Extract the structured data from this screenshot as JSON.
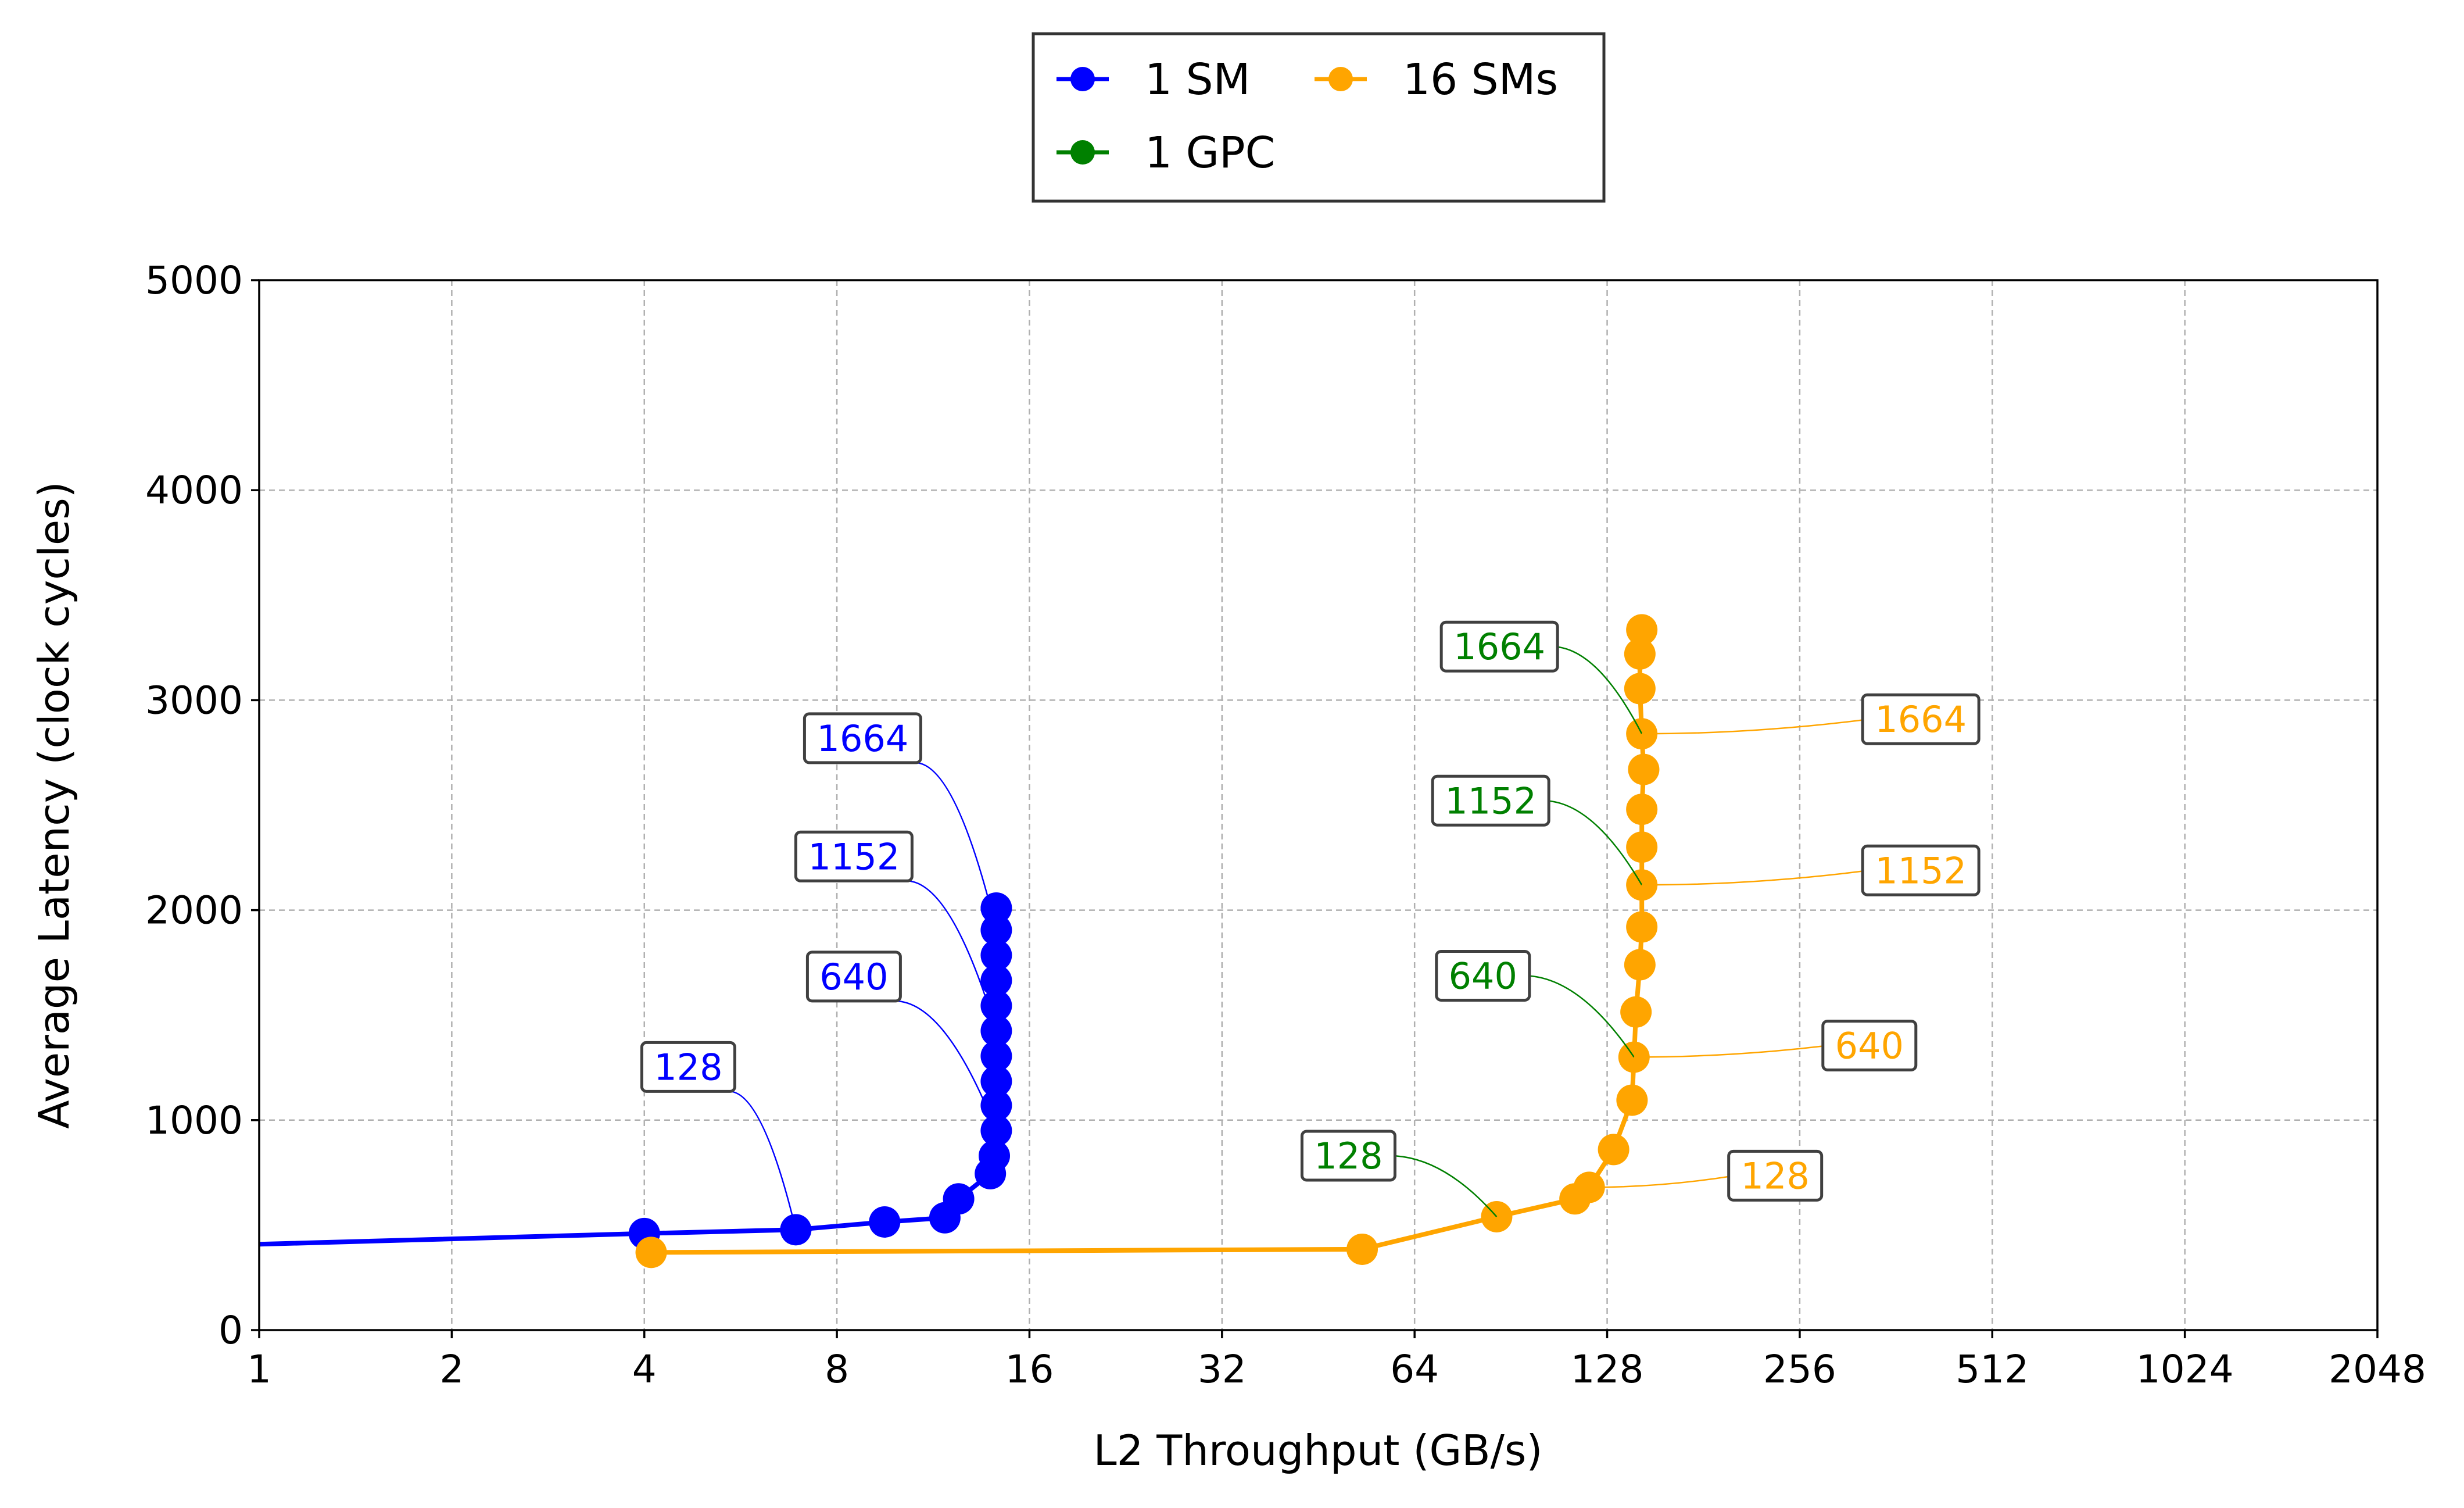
{
  "chart_data": {
    "type": "line",
    "xlabel": "L2 Throughput (GB/s)",
    "ylabel": "Average Latency (clock cycles)",
    "xscale": "log2",
    "xlim": [
      1,
      2048
    ],
    "ylim": [
      0,
      5000
    ],
    "xticks": [
      1,
      2,
      4,
      8,
      16,
      32,
      64,
      128,
      256,
      512,
      1024,
      2048
    ],
    "yticks": [
      0,
      1000,
      2000,
      3000,
      4000,
      5000
    ],
    "grid": true,
    "legend": {
      "position": "top-center",
      "columns": 2
    },
    "series": [
      {
        "name": "1 SM",
        "color": "#0000ff",
        "points": [
          [
            0.9,
            405
          ],
          [
            4.0,
            460
          ],
          [
            6.9,
            478
          ],
          [
            9.5,
            515
          ],
          [
            11.8,
            535
          ],
          [
            12.4,
            625
          ],
          [
            13.9,
            745
          ],
          [
            14.1,
            830
          ],
          [
            14.2,
            950
          ],
          [
            14.2,
            1070
          ],
          [
            14.2,
            1185
          ],
          [
            14.2,
            1305
          ],
          [
            14.2,
            1425
          ],
          [
            14.2,
            1545
          ],
          [
            14.2,
            1665
          ],
          [
            14.2,
            1785
          ],
          [
            14.2,
            1905
          ],
          [
            14.2,
            2010
          ]
        ]
      },
      {
        "name": "1 GPC",
        "color": "#008000",
        "points": []
      },
      {
        "name": "16 SMs",
        "color": "#ffa500",
        "points": [
          [
            4.1,
            370
          ],
          [
            53,
            385
          ],
          [
            86,
            540
          ],
          [
            114,
            625
          ],
          [
            120,
            680
          ],
          [
            131,
            860
          ],
          [
            140,
            1095
          ],
          [
            141,
            1300
          ],
          [
            142,
            1515
          ],
          [
            144,
            1740
          ],
          [
            145,
            1920
          ],
          [
            145,
            2120
          ],
          [
            145,
            2300
          ],
          [
            145,
            2480
          ],
          [
            146,
            2670
          ],
          [
            145,
            2840
          ],
          [
            144,
            3055
          ],
          [
            144,
            3220
          ],
          [
            145,
            3335
          ]
        ]
      }
    ],
    "annotations": [
      {
        "text": "128",
        "series": "1 SM",
        "point_index": 2
      },
      {
        "text": "640",
        "series": "1 SM",
        "point_index": 8
      },
      {
        "text": "1152",
        "series": "1 SM",
        "point_index": 12
      },
      {
        "text": "1664",
        "series": "1 SM",
        "point_index": 16
      },
      {
        "text": "128",
        "series": "1 GPC",
        "point_index": 2
      },
      {
        "text": "640",
        "series": "1 GPC",
        "point_index": 7
      },
      {
        "text": "1152",
        "series": "1 GPC",
        "point_index": 11
      },
      {
        "text": "1664",
        "series": "1 GPC",
        "point_index": 15
      },
      {
        "text": "128",
        "series": "16 SMs",
        "point_index": 4
      },
      {
        "text": "640",
        "series": "16 SMs",
        "point_index": 7
      },
      {
        "text": "1152",
        "series": "16 SMs",
        "point_index": 11
      },
      {
        "text": "1664",
        "series": "16 SMs",
        "point_index": 15
      }
    ]
  }
}
